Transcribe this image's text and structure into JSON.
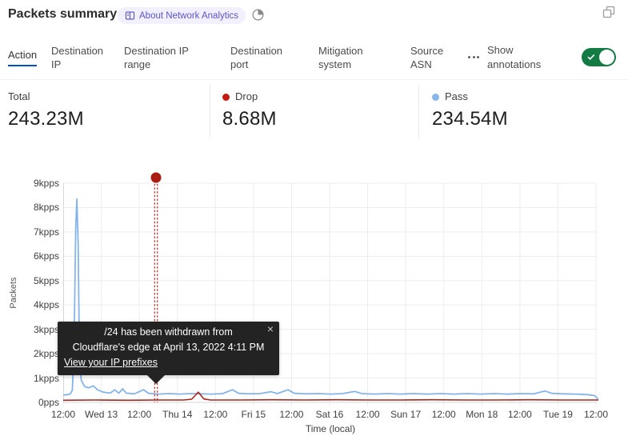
{
  "header": {
    "title": "Packets summary",
    "badge_label": "About Network Analytics"
  },
  "tabs": {
    "items": [
      {
        "label": "Action",
        "active": true
      },
      {
        "label": "Destination IP",
        "active": false
      },
      {
        "label": "Destination IP range",
        "active": false
      },
      {
        "label": "Destination port",
        "active": false
      },
      {
        "label": "Mitigation system",
        "active": false
      },
      {
        "label": "Source ASN",
        "active": false
      }
    ],
    "show_annotations_label": "Show annotations",
    "annotations_toggle_on": true
  },
  "stats": {
    "cards": [
      {
        "label": "Total",
        "value": "243.23M",
        "dot_color": null
      },
      {
        "label": "Drop",
        "value": "8.68M",
        "dot_color": "#c21b10"
      },
      {
        "label": "Pass",
        "value": "234.54M",
        "dot_color": "#8ab7ea"
      }
    ]
  },
  "chart_data": {
    "type": "line",
    "title": "Packets summary",
    "xlabel": "Time (local)",
    "ylabel": "Packets",
    "unit": "kpps",
    "ylim": [
      0,
      9
    ],
    "grid": true,
    "x_ticks": [
      "12:00",
      "Wed 13",
      "12:00",
      "Thu 14",
      "12:00",
      "Fri 15",
      "12:00",
      "Sat 16",
      "12:00",
      "Sun 17",
      "12:00",
      "Mon 18",
      "12:00",
      "Tue 19",
      "12:00"
    ],
    "y_ticks": [
      "9kpps",
      "8kpps",
      "7kpps",
      "6kpps",
      "5kpps",
      "4kpps",
      "3kpps",
      "2kpps",
      "1kpps",
      "0pps"
    ],
    "series": [
      {
        "name": "Pass",
        "color": "#85b4ea",
        "points": [
          [
            0.0,
            0.3
          ],
          [
            0.007,
            0.32
          ],
          [
            0.013,
            0.34
          ],
          [
            0.017,
            0.5
          ],
          [
            0.02,
            2.0
          ],
          [
            0.0235,
            7.2
          ],
          [
            0.0255,
            8.35
          ],
          [
            0.028,
            6.5
          ],
          [
            0.0305,
            1.6
          ],
          [
            0.034,
            0.9
          ],
          [
            0.04,
            0.65
          ],
          [
            0.048,
            0.6
          ],
          [
            0.056,
            0.68
          ],
          [
            0.064,
            0.52
          ],
          [
            0.075,
            0.42
          ],
          [
            0.088,
            0.38
          ],
          [
            0.096,
            0.52
          ],
          [
            0.104,
            0.38
          ],
          [
            0.111,
            0.56
          ],
          [
            0.118,
            0.38
          ],
          [
            0.133,
            0.35
          ],
          [
            0.15,
            0.52
          ],
          [
            0.16,
            0.37
          ],
          [
            0.178,
            0.34
          ],
          [
            0.198,
            0.36
          ],
          [
            0.218,
            0.34
          ],
          [
            0.238,
            0.36
          ],
          [
            0.258,
            0.35
          ],
          [
            0.278,
            0.34
          ],
          [
            0.298,
            0.36
          ],
          [
            0.316,
            0.52
          ],
          [
            0.328,
            0.37
          ],
          [
            0.348,
            0.35
          ],
          [
            0.368,
            0.36
          ],
          [
            0.388,
            0.44
          ],
          [
            0.4,
            0.36
          ],
          [
            0.42,
            0.52
          ],
          [
            0.432,
            0.37
          ],
          [
            0.455,
            0.35
          ],
          [
            0.478,
            0.36
          ],
          [
            0.5,
            0.34
          ],
          [
            0.522,
            0.36
          ],
          [
            0.545,
            0.45
          ],
          [
            0.558,
            0.36
          ],
          [
            0.58,
            0.34
          ],
          [
            0.605,
            0.36
          ],
          [
            0.63,
            0.34
          ],
          [
            0.655,
            0.36
          ],
          [
            0.68,
            0.34
          ],
          [
            0.705,
            0.36
          ],
          [
            0.73,
            0.34
          ],
          [
            0.755,
            0.36
          ],
          [
            0.78,
            0.34
          ],
          [
            0.805,
            0.36
          ],
          [
            0.83,
            0.34
          ],
          [
            0.855,
            0.36
          ],
          [
            0.88,
            0.35
          ],
          [
            0.9,
            0.47
          ],
          [
            0.913,
            0.37
          ],
          [
            0.935,
            0.35
          ],
          [
            0.958,
            0.34
          ],
          [
            0.98,
            0.32
          ],
          [
            0.993,
            0.28
          ],
          [
            1.0,
            0.12
          ]
        ]
      },
      {
        "name": "Drop",
        "color": "#a3271d",
        "points": [
          [
            0.0,
            0.09
          ],
          [
            0.06,
            0.1
          ],
          [
            0.12,
            0.09
          ],
          [
            0.18,
            0.1
          ],
          [
            0.225,
            0.1
          ],
          [
            0.24,
            0.13
          ],
          [
            0.2525,
            0.42
          ],
          [
            0.263,
            0.14
          ],
          [
            0.275,
            0.1
          ],
          [
            0.33,
            0.1
          ],
          [
            0.39,
            0.11
          ],
          [
            0.45,
            0.1
          ],
          [
            0.51,
            0.11
          ],
          [
            0.57,
            0.1
          ],
          [
            0.63,
            0.1
          ],
          [
            0.69,
            0.11
          ],
          [
            0.75,
            0.1
          ],
          [
            0.81,
            0.1
          ],
          [
            0.87,
            0.11
          ],
          [
            0.93,
            0.1
          ],
          [
            1.0,
            0.1
          ]
        ]
      }
    ],
    "annotation": {
      "x": 0.1734,
      "color": "#ab1d13",
      "style": "dashed-vertical",
      "marker": "dot"
    }
  },
  "tooltip": {
    "line1": "/24 has been withdrawn from",
    "line2": "Cloudflare's edge at April 13, 2022 4:11 PM",
    "link_label": "View your IP prefixes",
    "close_icon": "×"
  },
  "colors": {
    "tab_active_underline": "#0051c3",
    "toggle_on_green": "#127a42",
    "badge_bg": "#f1f0fc",
    "badge_text": "#5c55c8",
    "tooltip_bg": "#232323",
    "grid": "#ededed",
    "pass_blue": "#85b4ea",
    "drop_red": "#a3271d",
    "annotation_red": "#ab1d13"
  }
}
